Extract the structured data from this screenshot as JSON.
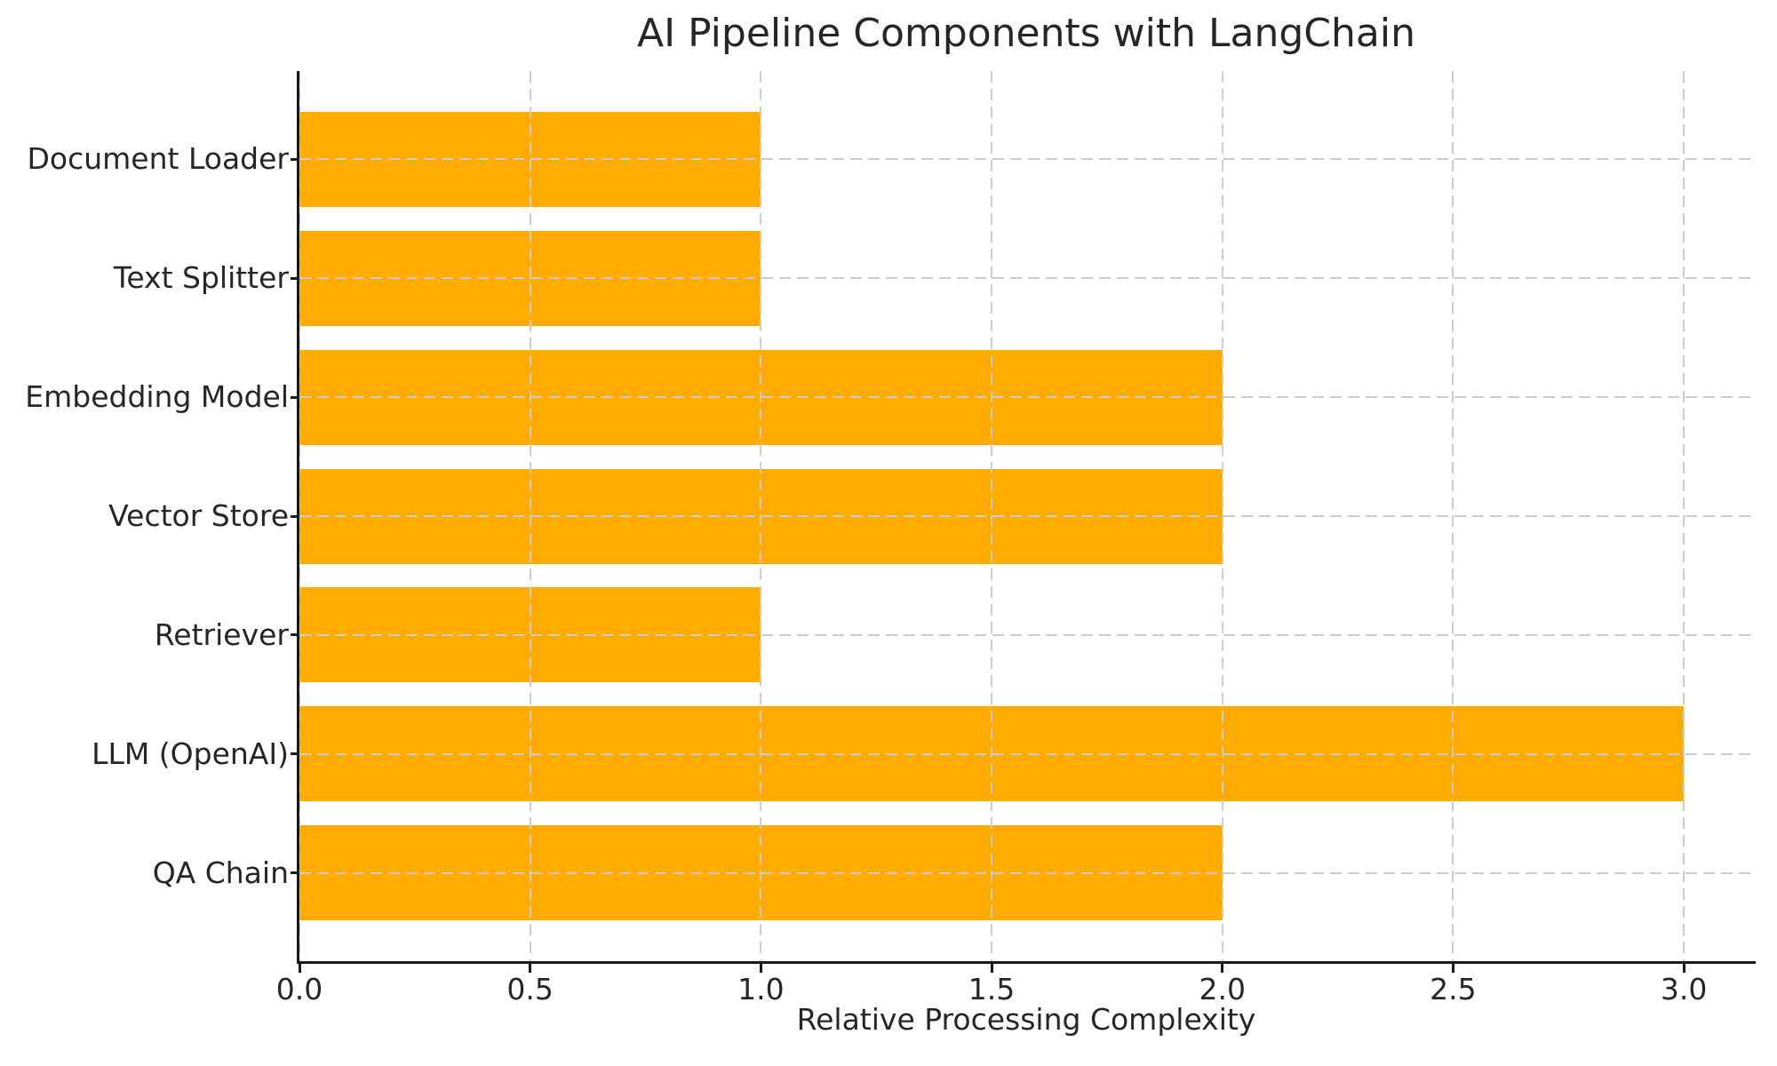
{
  "chart_data": {
    "type": "bar",
    "orientation": "horizontal",
    "title": "AI Pipeline Components with LangChain",
    "xlabel": "Relative Processing Complexity",
    "ylabel": "",
    "categories": [
      "Document Loader",
      "Text Splitter",
      "Embedding Model",
      "Vector Store",
      "Retriever",
      "LLM (OpenAI)",
      "QA Chain"
    ],
    "values": [
      1.0,
      1.0,
      2.0,
      2.0,
      1.0,
      3.0,
      2.0
    ],
    "xlim": [
      0,
      3.15
    ],
    "xticks": [
      0.0,
      0.5,
      1.0,
      1.5,
      2.0,
      2.5,
      3.0
    ],
    "xtick_labels": [
      "0.0",
      "0.5",
      "1.0",
      "1.5",
      "2.0",
      "2.5",
      "3.0"
    ],
    "bar_color": "#FFAB00",
    "grid": true,
    "grid_line_style": "dashed",
    "grid_color": "#CCCCCC",
    "grid_above_bars": true,
    "background_color": "#FFFFFF",
    "text_color": "#262626",
    "axis_color": "#1A1A1A",
    "bar_height_fraction": 0.8
  }
}
